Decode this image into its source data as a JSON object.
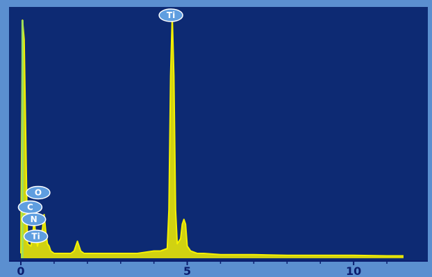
{
  "chart_data": {
    "type": "line",
    "title": "",
    "xlabel": "",
    "ylabel": "",
    "xlim": [
      0,
      11.5
    ],
    "ylim": [
      0,
      100
    ],
    "x_ticks": [
      {
        "value": 0,
        "label": "0"
      },
      {
        "value": 5,
        "label": "5"
      },
      {
        "value": 10,
        "label": "10"
      }
    ],
    "series": [
      {
        "color": "#f4f000",
        "x": [
          0.0,
          0.05,
          0.1,
          0.2,
          0.3,
          0.35,
          0.4,
          0.45,
          0.5,
          0.55,
          0.6,
          0.65,
          0.7,
          0.75,
          0.8,
          0.85,
          0.9,
          1.0,
          1.1,
          1.3,
          1.5,
          1.6,
          1.7,
          1.8,
          1.9,
          2.0,
          2.1,
          2.2,
          2.5,
          3.0,
          3.5,
          4.0,
          4.2,
          4.4,
          4.45,
          4.5,
          4.55,
          4.6,
          4.65,
          4.7,
          4.8,
          4.85,
          4.9,
          4.95,
          5.0,
          5.1,
          5.3,
          5.5,
          6.0,
          7.0,
          8.0,
          9.0,
          10.0,
          11.0,
          11.5
        ],
        "y": [
          2,
          98,
          90,
          6,
          5,
          9,
          16,
          9,
          5,
          8,
          10,
          12,
          18,
          11,
          6,
          5,
          3,
          2,
          2,
          2,
          2,
          3,
          7,
          3,
          2,
          2,
          2,
          2,
          2,
          2,
          2,
          3,
          3,
          4,
          20,
          75,
          100,
          75,
          20,
          6,
          8,
          14,
          16,
          14,
          5,
          3,
          2,
          2,
          1.5,
          1.5,
          1.2,
          1.2,
          1.2,
          1,
          1
        ]
      }
    ],
    "peak_labels": [
      {
        "label": "Ti",
        "x": 4.51,
        "y": 100
      },
      {
        "label": "O",
        "x": 0.52,
        "y": 27
      },
      {
        "label": "C",
        "x": 0.28,
        "y": 21
      },
      {
        "label": "N",
        "x": 0.39,
        "y": 16
      },
      {
        "label": "Ti",
        "x": 0.45,
        "y": 9
      }
    ],
    "grid": false,
    "colors": {
      "frame": "#5b8fd0",
      "plot_background": "#0d2a73",
      "trace": "#f4f000",
      "axis_strip": "#5b8fd0",
      "label_badge": "#5f9ee0"
    }
  }
}
